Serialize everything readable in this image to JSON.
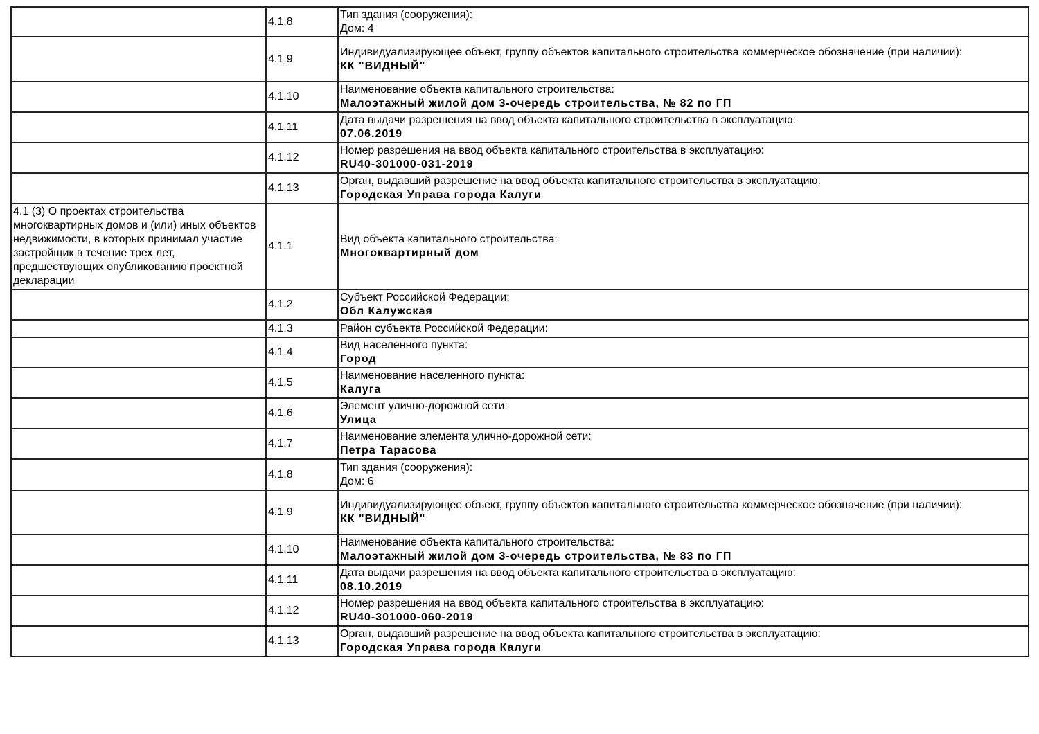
{
  "rows": [
    {
      "section": "",
      "code": "4.1.8",
      "label": "Тип здания (сооружения):",
      "value": "",
      "plain": "Дом: 4",
      "h": 43
    },
    {
      "section": "",
      "code": "4.1.9",
      "label": "Индивидуализирующее объект, группу объектов капитального строительства коммерческое обозначение (при наличии):",
      "value": "КК \"ВИДНЫЙ\"",
      "plain": "",
      "h": 65
    },
    {
      "section": "",
      "code": "4.1.10",
      "label": "Наименование объекта капитального строительства:",
      "value": "Малоэтажный жилой дом 3-очередь строительства, № 82 по ГП",
      "plain": "",
      "h": 44
    },
    {
      "section": "",
      "code": "4.1.11",
      "label": "Дата выдачи разрешения на ввод объекта капитального строительства в эксплуатацию:",
      "value": "07.06.2019",
      "plain": "",
      "h": 44
    },
    {
      "section": "",
      "code": "4.1.12",
      "label": "Номер разрешения на ввод объекта капитального строительства в эксплуатацию:",
      "value": "RU40-301000-031-2019",
      "plain": "",
      "h": 44
    },
    {
      "section": "",
      "code": "4.1.13",
      "label": "Орган, выдавший разрешение на ввод объекта капитального строительства в эксплуатацию:",
      "value": "Городская Управа города Калуги",
      "plain": "",
      "h": 44
    },
    {
      "section": "4.1 (3) О проектах строительства многоквартирных домов и (или) иных объектов недвижимости, в которых принимал участие застройщик в течение трех лет, предшествующих опубликованию проектной декларации",
      "code": "4.1.1",
      "label": "Вид объекта капитального строительства:",
      "value": "Многоквартирный дом",
      "plain": "",
      "h": 124
    },
    {
      "section": "",
      "code": "4.1.2",
      "label": "Субъект Российской Федерации:",
      "value": "Обл Калужская",
      "plain": "",
      "h": 44
    },
    {
      "section": "",
      "code": "4.1.3",
      "label": "Район субъекта Российской Федерации:",
      "value": "",
      "plain": "",
      "h": 25
    },
    {
      "section": "",
      "code": "4.1.4",
      "label": "Вид населенного пункта:",
      "value": "Город",
      "plain": "",
      "h": 44
    },
    {
      "section": "",
      "code": "4.1.5",
      "label": "Наименование населенного пункта:",
      "value": "Калуга",
      "plain": "",
      "h": 44
    },
    {
      "section": "",
      "code": "4.1.6",
      "label": "Элемент улично-дорожной сети:",
      "value": "Улица",
      "plain": "",
      "h": 44
    },
    {
      "section": "",
      "code": "4.1.7",
      "label": "Наименование элемента улично-дорожной сети:",
      "value": "Петра Тарасова",
      "plain": "",
      "h": 44
    },
    {
      "section": "",
      "code": "4.1.8",
      "label": "Тип здания (сооружения):",
      "value": "",
      "plain": "Дом: 6",
      "h": 45
    },
    {
      "section": "",
      "code": "4.1.9",
      "label": "Индивидуализирующее объект, группу объектов капитального строительства коммерческое обозначение (при наличии):",
      "value": "КК \"ВИДНЫЙ\"",
      "plain": "",
      "h": 64
    },
    {
      "section": "",
      "code": "4.1.10",
      "label": "Наименование объекта капитального строительства:",
      "value": "Малоэтажный жилой дом 3-очередь строительства, № 83 по ГП",
      "plain": "",
      "h": 44
    },
    {
      "section": "",
      "code": "4.1.11",
      "label": "Дата выдачи разрешения на ввод объекта капитального строительства в эксплуатацию:",
      "value": "08.10.2019",
      "plain": "",
      "h": 44
    },
    {
      "section": "",
      "code": "4.1.12",
      "label": "Номер разрешения на ввод объекта капитального строительства в эксплуатацию:",
      "value": "RU40-301000-060-2019",
      "plain": "",
      "h": 44
    },
    {
      "section": "",
      "code": "4.1.13",
      "label": "Орган, выдавший разрешение на ввод объекта капитального строительства в эксплуатацию:",
      "value": "Городская Управа города Калуги",
      "plain": "",
      "h": 44
    }
  ]
}
